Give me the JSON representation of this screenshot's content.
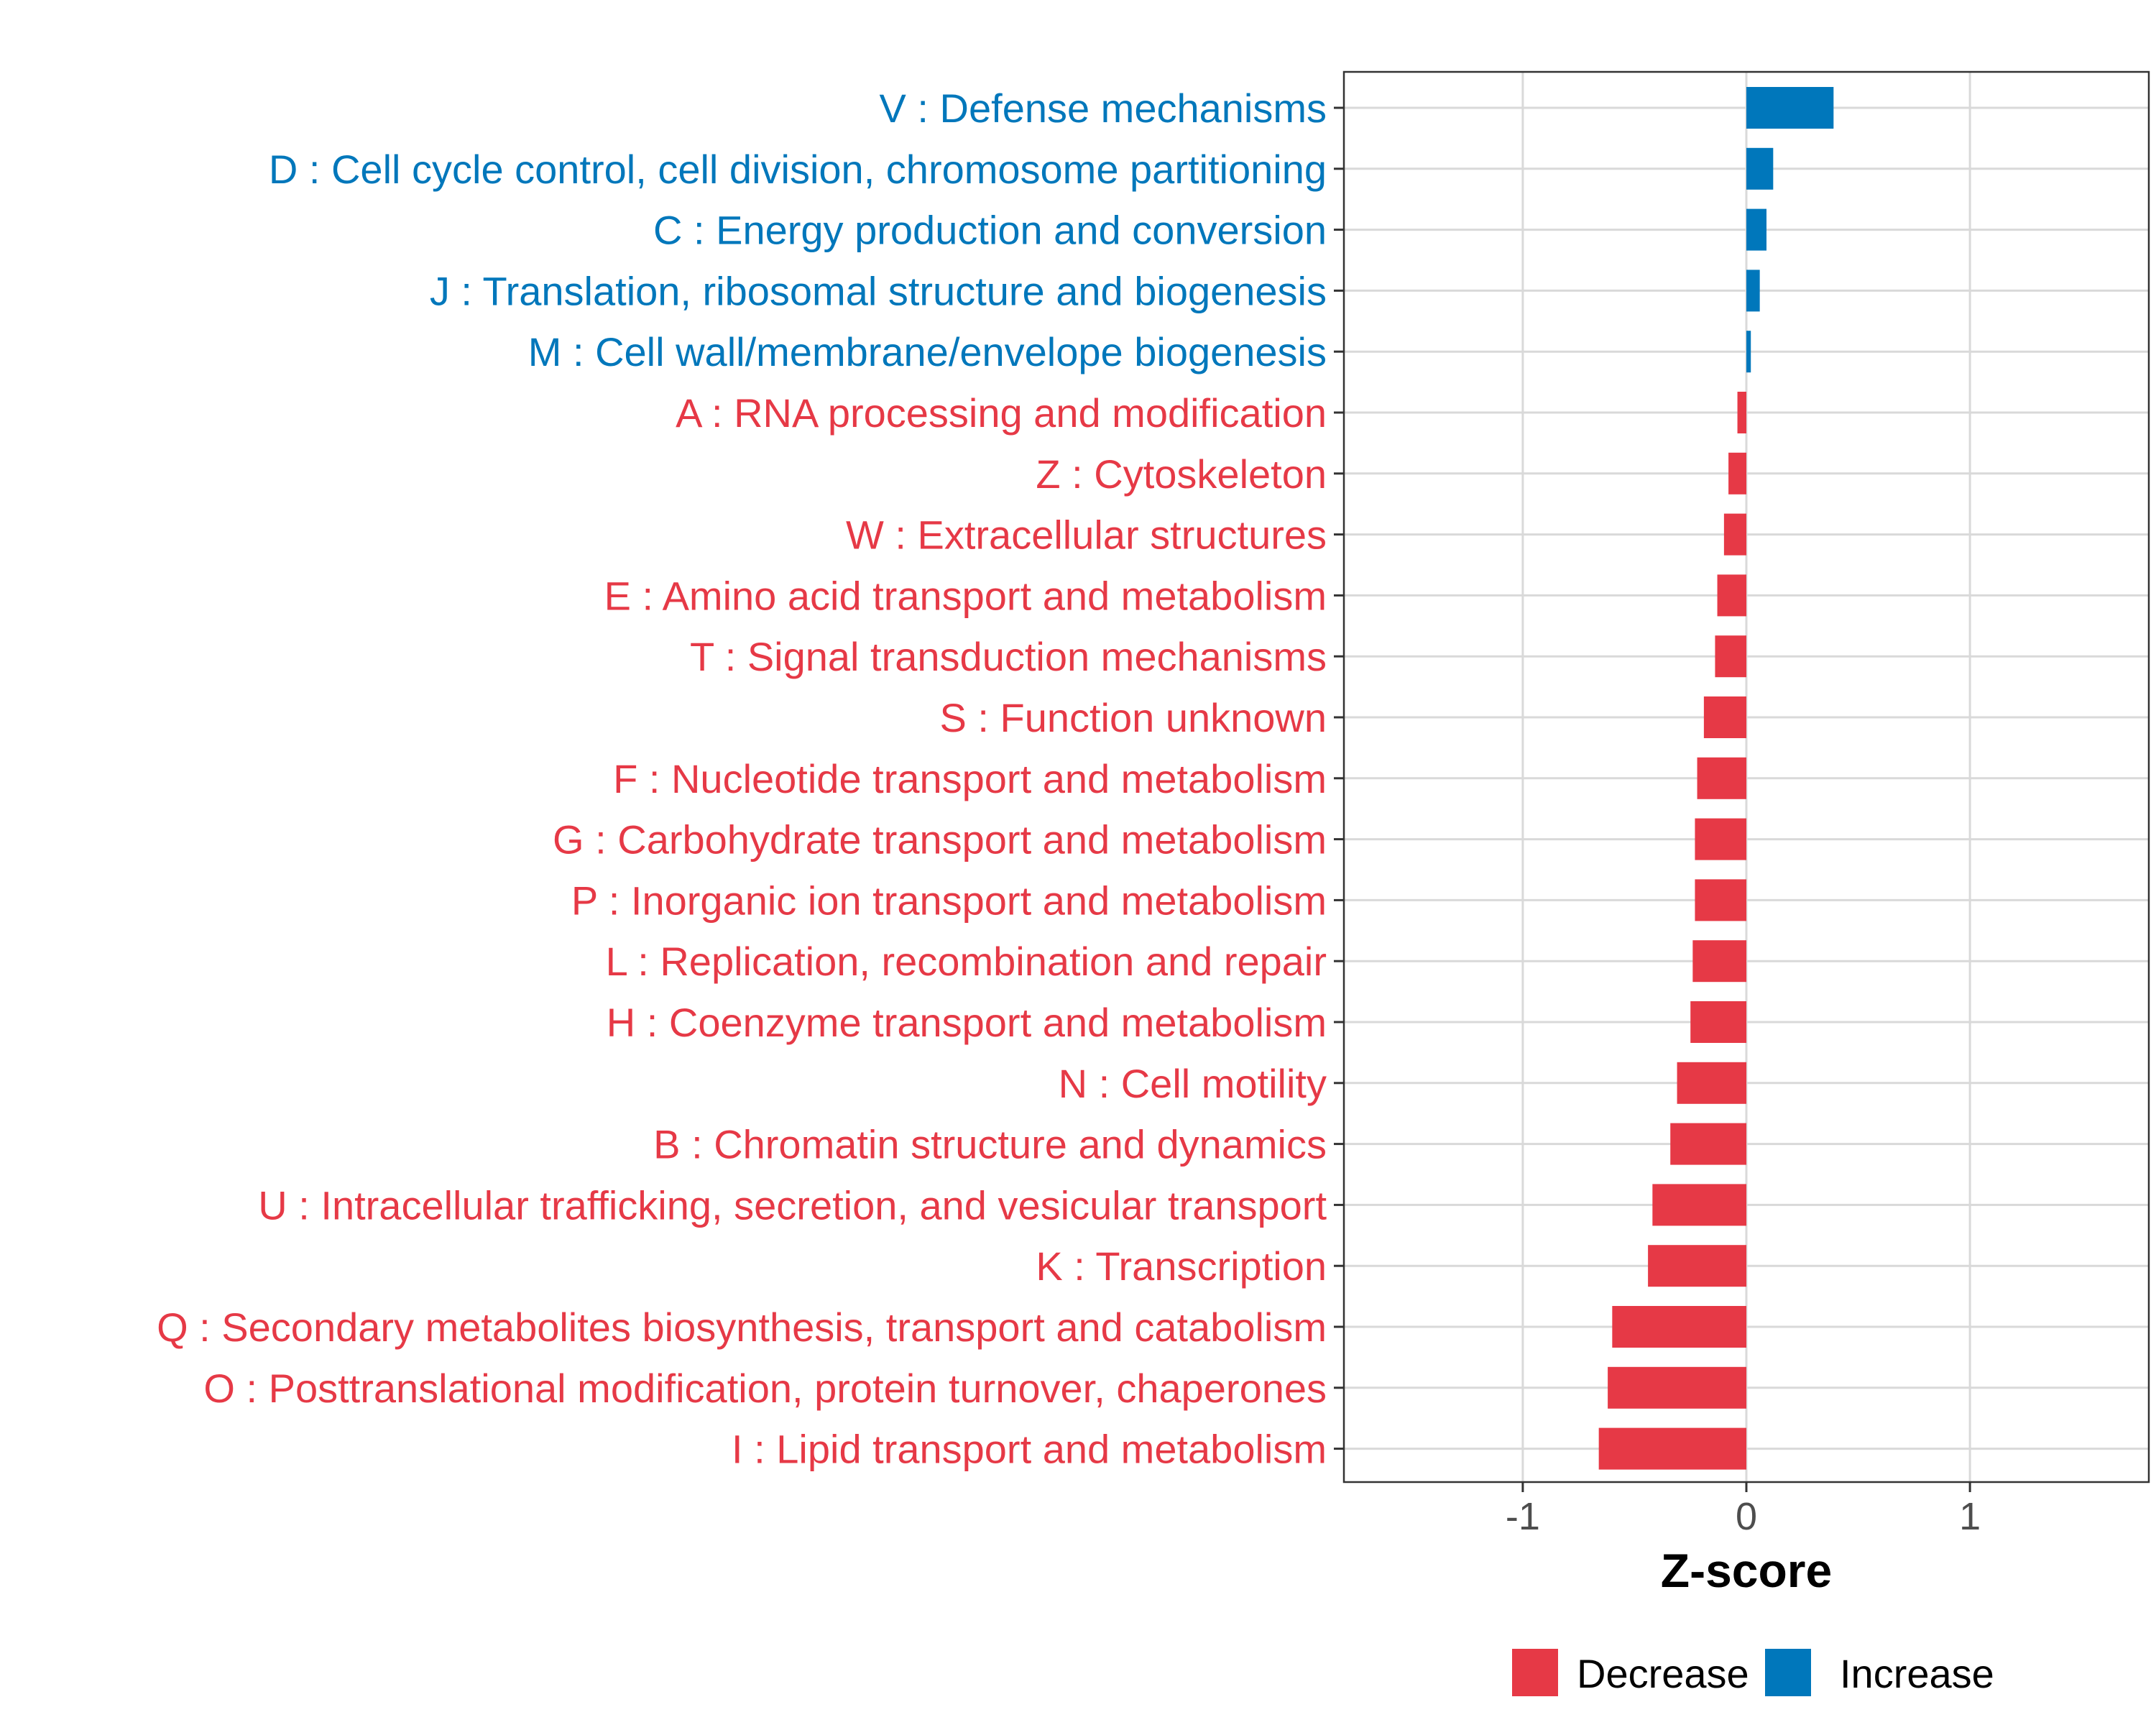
{
  "chart_data": {
    "type": "bar",
    "orientation": "horizontal",
    "title": "",
    "xlabel": "Z-score",
    "ylabel": "",
    "xlim": [
      -1.8,
      1.8
    ],
    "xticks": [
      -1,
      0,
      1
    ],
    "xtick_labels": [
      "-1",
      "0",
      "1"
    ],
    "grid": true,
    "categories": [
      "V : Defense mechanisms",
      "D : Cell cycle control, cell division, chromosome partitioning",
      "C : Energy production and conversion",
      "J : Translation, ribosomal structure and biogenesis",
      "M : Cell wall/membrane/envelope biogenesis",
      "A : RNA processing and modification",
      "Z : Cytoskeleton",
      "W : Extracellular structures",
      "E : Amino acid transport and metabolism",
      "T : Signal transduction mechanisms",
      "S : Function unknown",
      "F : Nucleotide transport and metabolism",
      "G : Carbohydrate transport and metabolism",
      "P : Inorganic ion transport and metabolism",
      "L : Replication, recombination and repair",
      "H : Coenzyme transport and metabolism",
      "N : Cell motility",
      "B : Chromatin structure and dynamics",
      "U : Intracellular trafficking, secretion, and vesicular transport",
      "K : Transcription",
      "Q : Secondary metabolites biosynthesis, transport and catabolism",
      "O : Posttranslational modification, protein turnover, chaperones",
      "I : Lipid transport and metabolism"
    ],
    "values": [
      0.39,
      0.12,
      0.09,
      0.06,
      0.02,
      -0.04,
      -0.08,
      -0.1,
      -0.13,
      -0.14,
      -0.19,
      -0.22,
      -0.23,
      -0.23,
      -0.24,
      -0.25,
      -0.31,
      -0.34,
      -0.42,
      -0.44,
      -0.6,
      -0.62,
      -0.66
    ],
    "groups": [
      "Increase",
      "Increase",
      "Increase",
      "Increase",
      "Increase",
      "Decrease",
      "Decrease",
      "Decrease",
      "Decrease",
      "Decrease",
      "Decrease",
      "Decrease",
      "Decrease",
      "Decrease",
      "Decrease",
      "Decrease",
      "Decrease",
      "Decrease",
      "Decrease",
      "Decrease",
      "Decrease",
      "Decrease",
      "Decrease"
    ],
    "legend": {
      "position": "bottom",
      "entries": [
        {
          "label": "Decrease",
          "color": "#E63946"
        },
        {
          "label": "Increase",
          "color": "#0077BB"
        }
      ]
    },
    "colors": {
      "Decrease": "#E63946",
      "Increase": "#0077BB"
    }
  }
}
